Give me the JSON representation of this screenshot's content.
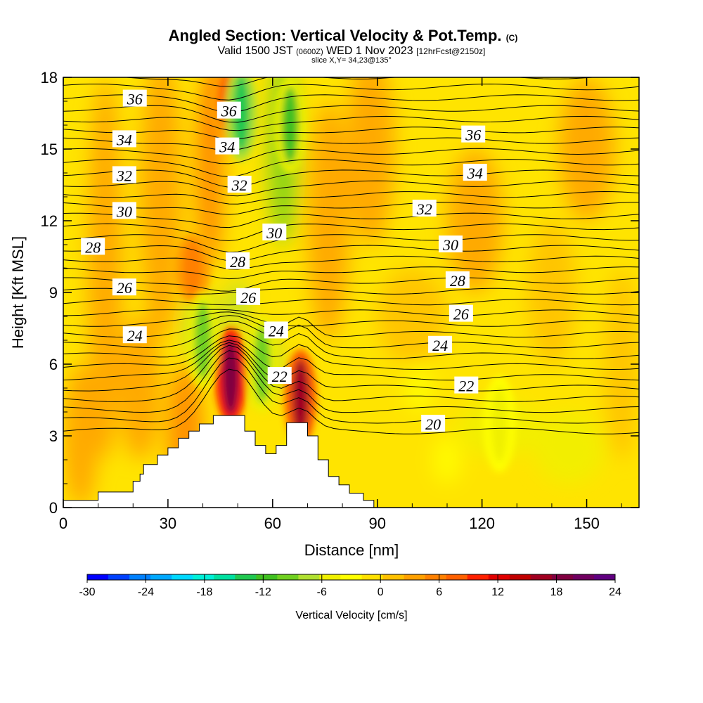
{
  "chart_data": {
    "type": "heatmap",
    "title": "Angled Section: Vertical Velocity & Pot.Temp.",
    "title_suffix": "(C)",
    "subtitle_parts": [
      "Valid 1500 JST",
      "(0600Z)",
      "WED 1 Nov 2023",
      "[12hrFcst@2150z]"
    ],
    "slice_text": "slice X,Y= 34,23@135°",
    "xlabel": "Distance [nm]",
    "ylabel": "Height [Kft MSL]",
    "xlim": [
      0,
      165
    ],
    "ylim": [
      0,
      18
    ],
    "x_ticks": [
      0,
      30,
      60,
      90,
      120,
      150
    ],
    "y_ticks": [
      0,
      3,
      6,
      9,
      12,
      15,
      18
    ],
    "colorbar": {
      "label": "Vertical Velocity [cm/s]",
      "range": [
        -30,
        24
      ],
      "tick_values": [
        -30,
        -24,
        -18,
        -12,
        -6,
        0,
        6,
        12,
        18,
        24
      ],
      "colors": [
        "#0000ff",
        "#0040ff",
        "#0080ff",
        "#00a8ff",
        "#00d8ff",
        "#00f0d8",
        "#00e0a0",
        "#20c850",
        "#40c020",
        "#70d020",
        "#b0e030",
        "#f0f000",
        "#ffff00",
        "#ffe000",
        "#ffc000",
        "#ffa000",
        "#ff8000",
        "#ff6000",
        "#ff2000",
        "#e00000",
        "#c00000",
        "#a00020",
        "#800040",
        "#700060",
        "#600080"
      ]
    },
    "terrain_profile": [
      [
        0,
        0.3
      ],
      [
        10,
        0.3
      ],
      [
        10,
        0.65
      ],
      [
        20,
        0.65
      ],
      [
        20,
        1.1
      ],
      [
        22,
        1.1
      ],
      [
        22,
        1.4
      ],
      [
        23,
        1.4
      ],
      [
        23,
        1.8
      ],
      [
        27,
        1.8
      ],
      [
        27,
        2.2
      ],
      [
        30,
        2.2
      ],
      [
        30,
        2.5
      ],
      [
        33,
        2.5
      ],
      [
        33,
        2.9
      ],
      [
        36,
        2.9
      ],
      [
        36,
        3.2
      ],
      [
        39,
        3.2
      ],
      [
        39,
        3.5
      ],
      [
        43,
        3.5
      ],
      [
        43,
        3.85
      ],
      [
        52,
        3.85
      ],
      [
        52,
        3.2
      ],
      [
        55,
        3.2
      ],
      [
        55,
        2.6
      ],
      [
        58,
        2.6
      ],
      [
        58,
        2.25
      ],
      [
        61,
        2.25
      ],
      [
        61,
        2.6
      ],
      [
        64,
        2.6
      ],
      [
        64,
        3.55
      ],
      [
        70,
        3.55
      ],
      [
        70,
        3.0
      ],
      [
        73,
        3.0
      ],
      [
        73,
        2.0
      ],
      [
        76,
        2.0
      ],
      [
        76,
        1.3
      ],
      [
        79,
        1.3
      ],
      [
        79,
        0.95
      ],
      [
        82,
        0.95
      ],
      [
        82,
        0.6
      ],
      [
        86,
        0.6
      ],
      [
        86,
        0.3
      ],
      [
        89,
        0.3
      ],
      [
        89,
        0
      ],
      [
        165,
        0
      ]
    ],
    "isentropes": [
      {
        "value": 20,
        "label_at": [
          96,
          3.4
        ]
      },
      {
        "value": 22,
        "label_at": [
          100,
          5.0
        ]
      },
      {
        "value": 24,
        "label_at": [
          97,
          6.7
        ]
      },
      {
        "value": 26,
        "label_at": [
          92,
          8.1
        ]
      },
      {
        "value": 28,
        "label_at": [
          95,
          9.5
        ]
      },
      {
        "value": 30,
        "label_at": [
          80,
          10.8
        ]
      },
      {
        "value": 32,
        "label_at": [
          88,
          12.5
        ]
      },
      {
        "value": 34,
        "label_at": [
          104,
          13.8
        ]
      },
      {
        "value": 36,
        "label_at": [
          105,
          15.6
        ]
      }
    ],
    "contour_labels": [
      {
        "text": "36",
        "x": 20.5,
        "y": 17.1
      },
      {
        "text": "34",
        "x": 17.5,
        "y": 15.4
      },
      {
        "text": "32",
        "x": 17.5,
        "y": 13.9
      },
      {
        "text": "30",
        "x": 17.5,
        "y": 12.4
      },
      {
        "text": "28",
        "x": 8.5,
        "y": 10.9
      },
      {
        "text": "26",
        "x": 17.5,
        "y": 9.2
      },
      {
        "text": "24",
        "x": 20.5,
        "y": 7.2
      },
      {
        "text": "36",
        "x": 47.5,
        "y": 16.6
      },
      {
        "text": "34",
        "x": 47.0,
        "y": 15.1
      },
      {
        "text": "32",
        "x": 50.5,
        "y": 13.5
      },
      {
        "text": "28",
        "x": 50.0,
        "y": 10.3
      },
      {
        "text": "30",
        "x": 60.5,
        "y": 11.5
      },
      {
        "text": "26",
        "x": 53.0,
        "y": 8.8
      },
      {
        "text": "24",
        "x": 61.0,
        "y": 7.4
      },
      {
        "text": "22",
        "x": 62.0,
        "y": 5.5
      },
      {
        "text": "36",
        "x": 117.5,
        "y": 15.6
      },
      {
        "text": "34",
        "x": 118.0,
        "y": 14.0
      },
      {
        "text": "32",
        "x": 103.5,
        "y": 12.5
      },
      {
        "text": "30",
        "x": 111.0,
        "y": 11.0
      },
      {
        "text": "28",
        "x": 113.0,
        "y": 9.5
      },
      {
        "text": "26",
        "x": 114.0,
        "y": 8.1
      },
      {
        "text": "24",
        "x": 108.0,
        "y": 6.8
      },
      {
        "text": "22",
        "x": 115.5,
        "y": 5.1
      },
      {
        "text": "20",
        "x": 106.0,
        "y": 3.5
      }
    ],
    "velocity_features": [
      {
        "kind": "updraft",
        "x": 48,
        "y": 5.5,
        "value": 20
      },
      {
        "kind": "updraft",
        "x": 68,
        "y": 4.6,
        "value": 18
      },
      {
        "kind": "updraft",
        "x": 47,
        "y": 17,
        "value": 8
      },
      {
        "kind": "updraft",
        "x": 37,
        "y": 10,
        "value": 6
      },
      {
        "kind": "downdraft",
        "x": 51,
        "y": 16.5,
        "value": -14
      },
      {
        "kind": "downdraft",
        "x": 65,
        "y": 16,
        "value": -12
      },
      {
        "kind": "downdraft",
        "x": 40,
        "y": 7,
        "value": -10
      },
      {
        "kind": "downdraft",
        "x": 57,
        "y": 6,
        "value": -9
      },
      {
        "kind": "downdraft",
        "x": 125,
        "y": 3.5,
        "value": -6
      }
    ]
  }
}
